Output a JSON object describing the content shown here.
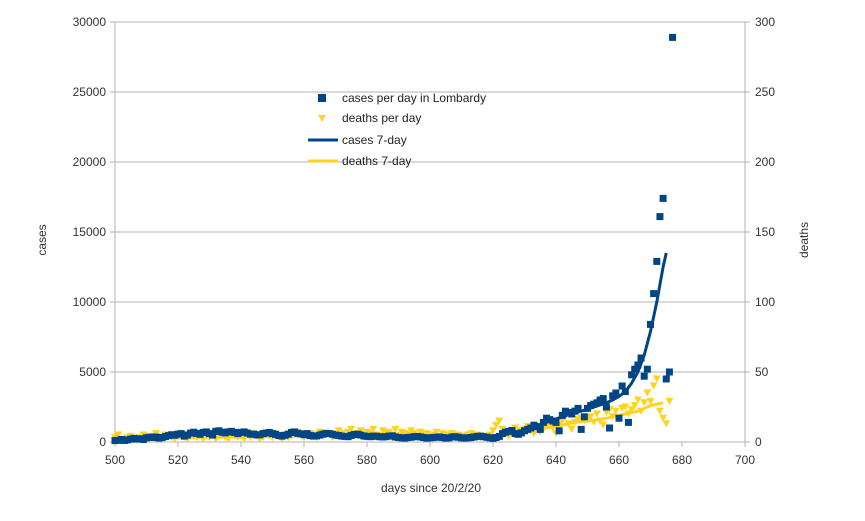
{
  "chart_data": {
    "type": "scatter",
    "xlabel": "days since 20/2/20",
    "ylabel": "cases",
    "y2label": "deaths",
    "xlim": [
      500,
      700
    ],
    "ylim": [
      0,
      30000
    ],
    "y2lim": [
      0,
      300
    ],
    "x_ticks": [
      "500",
      "520",
      "540",
      "560",
      "580",
      "600",
      "620",
      "640",
      "660",
      "680",
      "700"
    ],
    "y_ticks": [
      "0",
      "5000",
      "10000",
      "15000",
      "20000",
      "25000",
      "30000"
    ],
    "y2_ticks": [
      "0",
      "50",
      "100",
      "150",
      "200",
      "250",
      "300"
    ],
    "grid": "horizontal",
    "legend_position": "top-center",
    "colors": {
      "cases": "#004586",
      "deaths": "#ffd320",
      "grid": "#b3b3b3",
      "axis": "#b3b3b3"
    },
    "legend": [
      "cases per day in Lombardy",
      "deaths per day",
      "cases 7-day",
      "deaths 7-day"
    ],
    "series": [
      {
        "name": "cases per day in Lombardy",
        "kind": "scatter",
        "marker": "square",
        "axis": "left",
        "x": [
          500,
          501,
          502,
          503,
          504,
          505,
          506,
          507,
          508,
          509,
          510,
          511,
          512,
          513,
          514,
          515,
          516,
          517,
          518,
          519,
          520,
          521,
          522,
          523,
          524,
          525,
          526,
          527,
          528,
          529,
          530,
          531,
          532,
          533,
          534,
          535,
          536,
          537,
          538,
          539,
          540,
          541,
          542,
          543,
          544,
          545,
          546,
          547,
          548,
          549,
          550,
          551,
          552,
          553,
          554,
          555,
          556,
          557,
          558,
          559,
          560,
          561,
          562,
          563,
          564,
          565,
          566,
          567,
          568,
          569,
          570,
          571,
          572,
          573,
          574,
          575,
          576,
          577,
          578,
          579,
          580,
          581,
          582,
          583,
          584,
          585,
          586,
          587,
          588,
          589,
          590,
          591,
          592,
          593,
          594,
          595,
          596,
          597,
          598,
          599,
          600,
          601,
          602,
          603,
          604,
          605,
          606,
          607,
          608,
          609,
          610,
          611,
          612,
          613,
          614,
          615,
          616,
          617,
          618,
          619,
          620,
          621,
          622,
          623,
          624,
          625,
          626,
          627,
          628,
          629,
          630,
          631,
          632,
          633,
          634,
          635,
          636,
          637,
          638,
          639,
          640,
          641,
          642,
          643,
          644,
          645,
          646,
          647,
          648,
          649,
          650,
          651,
          652,
          653,
          654,
          655,
          656,
          657,
          658,
          659,
          660,
          661,
          662,
          663,
          664,
          665,
          666,
          667,
          668,
          669,
          670,
          671,
          672,
          673,
          674,
          675,
          676,
          677
        ],
        "y": [
          100,
          120,
          180,
          110,
          150,
          200,
          260,
          210,
          230,
          180,
          300,
          350,
          320,
          360,
          280,
          320,
          390,
          460,
          520,
          480,
          560,
          600,
          420,
          500,
          640,
          700,
          610,
          550,
          680,
          720,
          600,
          500,
          760,
          800,
          700,
          650,
          720,
          760,
          680,
          600,
          690,
          720,
          640,
          560,
          560,
          500,
          520,
          600,
          640,
          680,
          600,
          540,
          460,
          420,
          480,
          560,
          680,
          720,
          620,
          580,
          520,
          600,
          460,
          420,
          430,
          500,
          560,
          620,
          600,
          560,
          500,
          460,
          420,
          400,
          380,
          470,
          540,
          560,
          500,
          430,
          400,
          380,
          420,
          410,
          380,
          360,
          380,
          420,
          440,
          360,
          320,
          300,
          280,
          320,
          340,
          380,
          400,
          360,
          320,
          280,
          300,
          320,
          340,
          360,
          320,
          280,
          300,
          360,
          380,
          340,
          300,
          280,
          300,
          320,
          360,
          400,
          420,
          380,
          340,
          300,
          260,
          320,
          400,
          600,
          700,
          760,
          820,
          600,
          550,
          650,
          800,
          900,
          1000,
          1200,
          1100,
          900,
          1400,
          1700,
          1600,
          1500,
          1400,
          800,
          1900,
          2200,
          2100,
          2000,
          2200,
          2400,
          900,
          1800,
          2400,
          2600,
          2700,
          2800,
          3000,
          3100,
          2500,
          1000,
          3300,
          3500,
          1700,
          4000,
          3600,
          1400,
          4800,
          5200,
          5500,
          6000,
          4700,
          5200,
          8400,
          10600,
          12900,
          16100,
          17400,
          4500,
          5000,
          28900
        ]
      },
      {
        "name": "deaths per day",
        "kind": "scatter",
        "marker": "triangle-down",
        "axis": "right",
        "x": [
          500,
          501,
          502,
          503,
          504,
          505,
          506,
          507,
          508,
          509,
          510,
          511,
          512,
          513,
          514,
          515,
          516,
          517,
          518,
          519,
          520,
          521,
          522,
          523,
          524,
          525,
          526,
          527,
          528,
          529,
          530,
          531,
          532,
          533,
          534,
          535,
          536,
          537,
          538,
          539,
          540,
          541,
          542,
          543,
          544,
          545,
          546,
          547,
          548,
          549,
          550,
          551,
          552,
          553,
          554,
          555,
          556,
          557,
          558,
          559,
          560,
          561,
          562,
          563,
          564,
          565,
          566,
          567,
          568,
          569,
          570,
          571,
          572,
          573,
          574,
          575,
          576,
          577,
          578,
          579,
          580,
          581,
          582,
          583,
          584,
          585,
          586,
          587,
          588,
          589,
          590,
          591,
          592,
          593,
          594,
          595,
          596,
          597,
          598,
          599,
          600,
          601,
          602,
          603,
          604,
          605,
          606,
          607,
          608,
          609,
          610,
          611,
          612,
          613,
          614,
          615,
          616,
          617,
          618,
          619,
          620,
          621,
          622,
          623,
          624,
          625,
          626,
          627,
          628,
          629,
          630,
          631,
          632,
          633,
          634,
          635,
          636,
          637,
          638,
          639,
          640,
          641,
          642,
          643,
          644,
          645,
          646,
          647,
          648,
          649,
          650,
          651,
          652,
          653,
          654,
          655,
          656,
          657,
          658,
          659,
          660,
          661,
          662,
          663,
          664,
          665,
          666,
          667,
          668,
          669,
          670,
          671,
          672,
          673,
          674,
          675,
          676
        ],
        "y": [
          3,
          5,
          1,
          2,
          3,
          4,
          2,
          1,
          3,
          5,
          2,
          3,
          4,
          6,
          2,
          3,
          5,
          4,
          3,
          2,
          4,
          6,
          3,
          2,
          5,
          4,
          3,
          6,
          2,
          4,
          3,
          5,
          2,
          4,
          6,
          3,
          2,
          5,
          4,
          3,
          4,
          2,
          5,
          3,
          6,
          4,
          2,
          3,
          5,
          4,
          3,
          6,
          4,
          2,
          5,
          3,
          4,
          6,
          7,
          5,
          3,
          4,
          6,
          5,
          3,
          7,
          4,
          5,
          6,
          3,
          5,
          8,
          6,
          4,
          7,
          9,
          5,
          6,
          8,
          4,
          7,
          6,
          9,
          5,
          4,
          8,
          6,
          7,
          5,
          9,
          4,
          7,
          6,
          5,
          8,
          6,
          4,
          7,
          5,
          6,
          3,
          5,
          7,
          4,
          6,
          5,
          3,
          6,
          4,
          5,
          3,
          4,
          5,
          6,
          4,
          5,
          3,
          4,
          3,
          5,
          8,
          12,
          15,
          9,
          6,
          4,
          7,
          10,
          8,
          5,
          9,
          11,
          8,
          6,
          10,
          7,
          9,
          12,
          14,
          10,
          6,
          12,
          15,
          18,
          13,
          9,
          14,
          16,
          17,
          15,
          16,
          18,
          14,
          20,
          15,
          12,
          21,
          23,
          18,
          22,
          16,
          24,
          25,
          20,
          23,
          26,
          30,
          22,
          28,
          35,
          29,
          40,
          45,
          22,
          17,
          13,
          29
        ]
      },
      {
        "name": "cases 7-day",
        "kind": "line",
        "axis": "left",
        "x": [
          500,
          505,
          510,
          515,
          520,
          525,
          530,
          535,
          540,
          545,
          550,
          555,
          560,
          565,
          570,
          575,
          580,
          585,
          590,
          595,
          600,
          605,
          610,
          615,
          620,
          622,
          624,
          626,
          628,
          630,
          632,
          634,
          636,
          638,
          640,
          642,
          644,
          646,
          648,
          650,
          652,
          654,
          656,
          658,
          660,
          662,
          664,
          666,
          668,
          670,
          672,
          674,
          675
        ],
        "y": [
          120,
          180,
          280,
          340,
          480,
          560,
          620,
          650,
          630,
          560,
          530,
          560,
          560,
          510,
          500,
          460,
          440,
          400,
          380,
          340,
          330,
          340,
          330,
          360,
          330,
          500,
          640,
          680,
          700,
          800,
          950,
          1100,
          1300,
          1500,
          1650,
          1800,
          1950,
          2100,
          2200,
          2350,
          2500,
          2650,
          2800,
          3000,
          3250,
          3600,
          4200,
          5000,
          6200,
          7900,
          10000,
          12500,
          13500
        ]
      },
      {
        "name": "deaths 7-day",
        "kind": "line",
        "axis": "right",
        "x": [
          500,
          505,
          510,
          515,
          520,
          525,
          530,
          535,
          540,
          545,
          550,
          555,
          560,
          565,
          570,
          575,
          580,
          585,
          590,
          595,
          600,
          605,
          610,
          615,
          620,
          622,
          624,
          626,
          628,
          630,
          632,
          634,
          636,
          638,
          640,
          642,
          644,
          646,
          648,
          650,
          652,
          654,
          656,
          658,
          660,
          662,
          664,
          666,
          668,
          670,
          672,
          674
        ],
        "y": [
          3,
          3,
          3,
          3,
          3,
          3,
          3.5,
          3.5,
          3.5,
          4,
          4,
          4,
          4.5,
          5,
          5,
          5.5,
          6,
          6,
          6,
          5.5,
          5,
          4.5,
          4.5,
          4.5,
          4.5,
          5,
          6,
          7,
          7.5,
          8,
          8.5,
          9,
          10,
          10.5,
          11,
          12,
          13,
          14,
          14.5,
          15,
          15.5,
          16,
          17,
          18,
          19,
          20,
          21,
          22,
          24,
          26,
          27,
          28
        ]
      }
    ]
  }
}
